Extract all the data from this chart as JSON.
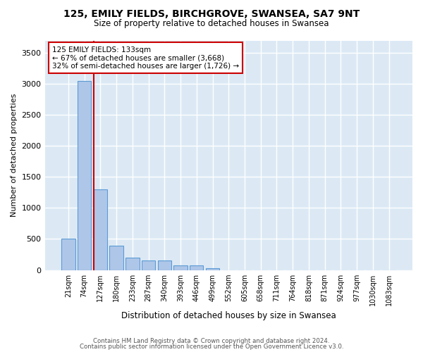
{
  "title": "125, EMILY FIELDS, BIRCHGROVE, SWANSEA, SA7 9NT",
  "subtitle": "Size of property relative to detached houses in Swansea",
  "xlabel": "Distribution of detached houses by size in Swansea",
  "ylabel": "Number of detached properties",
  "bin_labels": [
    "21sqm",
    "74sqm",
    "127sqm",
    "180sqm",
    "233sqm",
    "287sqm",
    "340sqm",
    "393sqm",
    "446sqm",
    "499sqm",
    "552sqm",
    "605sqm",
    "658sqm",
    "711sqm",
    "764sqm",
    "818sqm",
    "871sqm",
    "924sqm",
    "977sqm",
    "1030sqm",
    "1083sqm"
  ],
  "bar_values": [
    500,
    3050,
    1300,
    390,
    200,
    155,
    150,
    80,
    80,
    30,
    0,
    0,
    0,
    0,
    0,
    0,
    0,
    0,
    0,
    0,
    0
  ],
  "bar_color": "#aec6e8",
  "bar_edge_color": "#5b9bd5",
  "annotation_text": "125 EMILY FIELDS: 133sqm\n← 67% of detached houses are smaller (3,668)\n32% of semi-detached houses are larger (1,726) →",
  "annotation_box_color": "#ffffff",
  "annotation_border_color": "#cc0000",
  "red_line_x": 1.58,
  "ylim": [
    0,
    3700
  ],
  "yticks": [
    0,
    500,
    1000,
    1500,
    2000,
    2500,
    3000,
    3500
  ],
  "footer_line1": "Contains HM Land Registry data © Crown copyright and database right 2024.",
  "footer_line2": "Contains public sector information licensed under the Open Government Licence v3.0.",
  "plot_bg_color": "#dce9f5",
  "fig_bg_color": "#ffffff",
  "grid_color": "#ffffff"
}
